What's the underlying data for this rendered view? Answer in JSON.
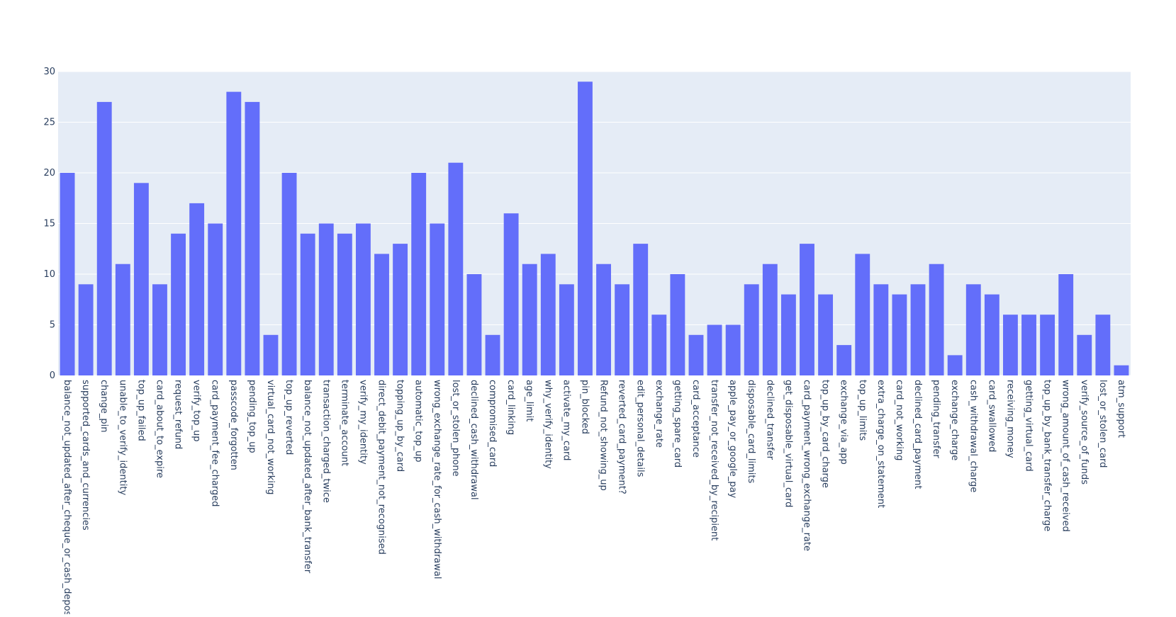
{
  "chart_data": {
    "type": "bar",
    "categories": [
      "balance_not_updated_after_cheque_or_cash_deposit",
      "supported_cards_and_currencies",
      "change_pin",
      "unable_to_verify_identity",
      "top_up_failed",
      "card_about_to_expire",
      "request_refund",
      "verify_top_up",
      "card_payment_fee_charged",
      "passcode_forgotten",
      "pending_top_up",
      "virtual_card_not_working",
      "top_up_reverted",
      "balance_not_updated_after_bank_transfer",
      "transaction_charged_twice",
      "terminate_account",
      "verify_my_identity",
      "direct_debit_payment_not_recognised",
      "topping_up_by_card",
      "automatic_top_up",
      "wrong_exchange_rate_for_cash_withdrawal",
      "lost_or_stolen_phone",
      "declined_cash_withdrawal",
      "compromised_card",
      "card_linking",
      "age_limit",
      "why_verify_identity",
      "activate_my_card",
      "pin_blocked",
      "Refund_not_showing_up",
      "reverted_card_payment?",
      "edit_personal_details",
      "exchange_rate",
      "getting_spare_card",
      "card_acceptance",
      "transfer_not_received_by_recipient",
      "apple_pay_or_google_pay",
      "disposable_card_limits",
      "declined_transfer",
      "get_disposable_virtual_card",
      "card_payment_wrong_exchange_rate",
      "top_up_by_card_charge",
      "exchange_via_app",
      "top_up_limits",
      "extra_charge_on_statement",
      "card_not_working",
      "declined_card_payment",
      "pending_transfer",
      "exchange_charge",
      "cash_withdrawal_charge",
      "card_swallowed",
      "receiving_money",
      "getting_virtual_card",
      "top_up_by_bank_transfer_charge",
      "wrong_amount_of_cash_received",
      "verify_source_of_funds",
      "lost_or_stolen_card",
      "atm_support"
    ],
    "values": [
      20,
      9,
      27,
      11,
      19,
      9,
      14,
      17,
      15,
      28,
      27,
      4,
      20,
      14,
      15,
      14,
      15,
      12,
      13,
      20,
      15,
      21,
      10,
      4,
      16,
      11,
      12,
      9,
      29,
      11,
      9,
      13,
      6,
      10,
      4,
      5,
      5,
      9,
      11,
      8,
      13,
      8,
      3,
      12,
      9,
      8,
      9,
      11,
      2,
      9,
      8,
      6,
      6,
      6,
      10,
      4,
      6,
      1
    ],
    "color": "#636efa",
    "ylim": [
      0,
      30
    ],
    "yticks": [
      0,
      5,
      10,
      15,
      20,
      25,
      30
    ],
    "grid": true
  }
}
